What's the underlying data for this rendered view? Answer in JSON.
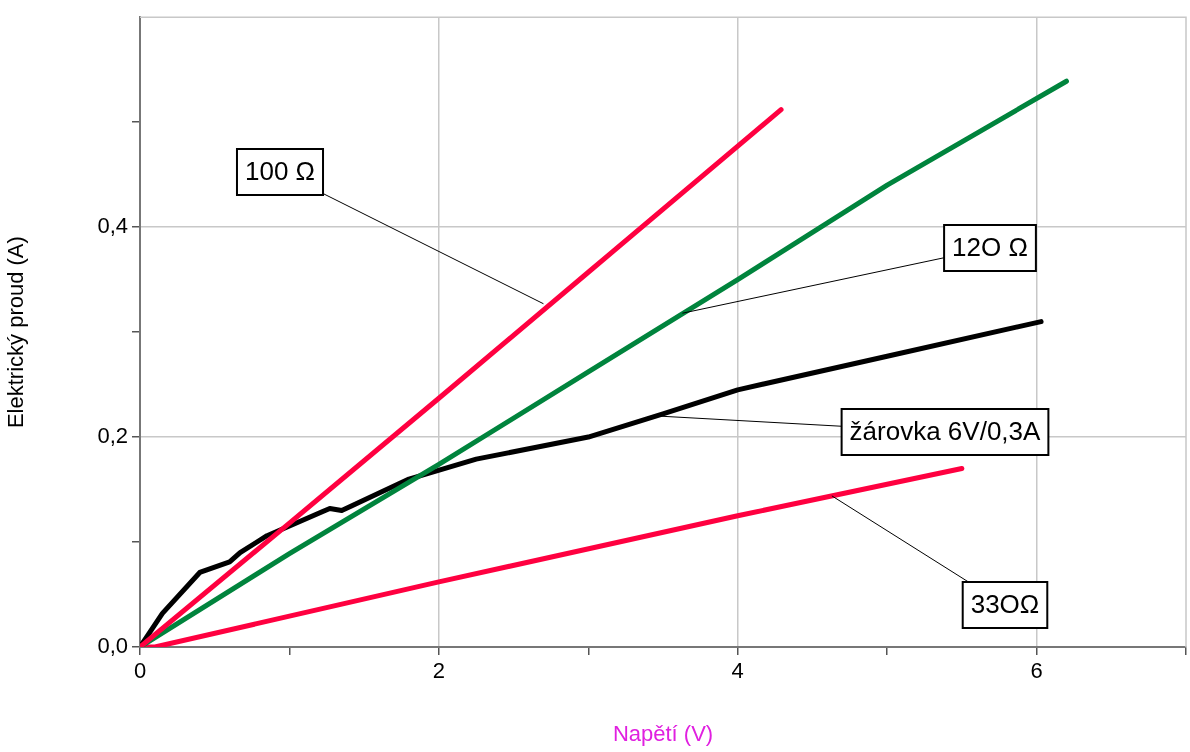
{
  "chart_data": {
    "type": "line",
    "xlabel": "Napětí (V)",
    "ylabel": "Elektrický proud (A)",
    "xlim": [
      0,
      7
    ],
    "ylim": [
      0,
      0.6
    ],
    "xticks": [
      0,
      {
        "value": 1,
        "label": null
      },
      2,
      {
        "value": 3,
        "label": null
      },
      4,
      {
        "value": 5,
        "label": null
      },
      6,
      {
        "value": 7,
        "label": null
      }
    ],
    "yticks": [
      {
        "value": 0,
        "label": "0,0"
      },
      {
        "value": 0.1,
        "label": null
      },
      {
        "value": 0.2,
        "label": "0,2"
      },
      {
        "value": 0.3,
        "label": null
      },
      {
        "value": 0.4,
        "label": "0,4"
      },
      {
        "value": 0.5,
        "label": null
      }
    ],
    "grid": true,
    "legend": false,
    "marker": "none",
    "line_style": "solid",
    "series": [
      {
        "color": "#ff0040",
        "x": [
          0,
          1,
          2,
          3,
          4.29
        ],
        "values": [
          0,
          0.118,
          0.237,
          0.357,
          0.512
        ]
      },
      {
        "color": "#00843d",
        "x": [
          0,
          1,
          2,
          3,
          4,
          5,
          6.2
        ],
        "values": [
          0,
          0.089,
          0.174,
          0.262,
          0.35,
          0.44,
          0.539
        ]
      },
      {
        "color": "#000000",
        "x": [
          0,
          0.15,
          0.4,
          0.6,
          0.67,
          0.85,
          1.27,
          1.35,
          1.8,
          2.25,
          3,
          3.5,
          4,
          5,
          6.03
        ],
        "values": [
          0,
          0.032,
          0.071,
          0.081,
          0.09,
          0.106,
          0.132,
          0.13,
          0.16,
          0.179,
          0.2,
          0.222,
          0.245,
          0.277,
          0.31
        ]
      },
      {
        "color": "#ff0040",
        "x": [
          0,
          0.1,
          2,
          4,
          5.5
        ],
        "values": [
          0,
          0,
          0.062,
          0.125,
          0.17
        ]
      }
    ],
    "annotations": [
      {
        "text": "100 Ω",
        "x": 2.7,
        "y": 0.327
      },
      {
        "text": "12O Ω",
        "x": 3.63,
        "y": 0.318
      },
      {
        "text": "žárovka 6V/0,3A",
        "x": 3.47,
        "y": 0.22
      },
      {
        "text": "33OΩ",
        "x": 4.63,
        "y": 0.144
      }
    ]
  }
}
